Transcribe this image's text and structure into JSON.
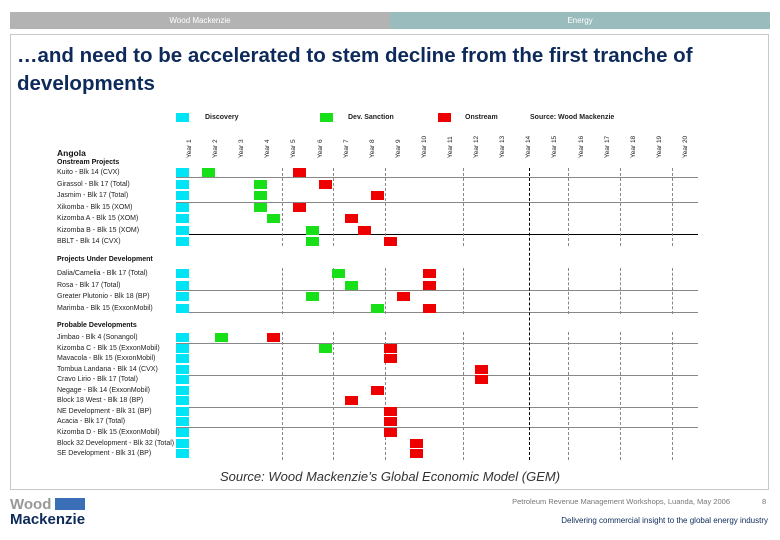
{
  "header": {
    "left": "Wood Mackenzie",
    "right": "Energy"
  },
  "title": "…and need to be accelerated to stem decline from the first tranche of developments",
  "chart_data": {
    "type": "table",
    "legend": [
      {
        "label": "Discovery",
        "color": "#00e5f5"
      },
      {
        "label": "Dev. Sanction",
        "color": "#18e018"
      },
      {
        "label": "Onstream",
        "color": "#ee0000"
      }
    ],
    "legend_note": "Source: Wood Mackenzie",
    "columns": [
      "Year 1",
      "Year 2",
      "Year 3",
      "Year 4",
      "Year 5",
      "Year 6",
      "Year 7",
      "Year 8",
      "Year 9",
      "Year 10",
      "Year 11",
      "Year 12",
      "Year 13",
      "Year 14",
      "Year 15",
      "Year 16",
      "Year 17",
      "Year 18",
      "Year 19",
      "Year 20"
    ],
    "country": "Angola",
    "sections": [
      {
        "title": "Onstream Projects",
        "rows": [
          {
            "label": "Kuito - Blk 14 (CVX)",
            "discovery": 1,
            "sanction": 2,
            "onstream": 5.5
          },
          {
            "label": "Girassol - Blk 17 (Total)",
            "discovery": 1,
            "sanction": 4,
            "onstream": 6.5
          },
          {
            "label": "Jasmim - Blk 17 (Total)",
            "discovery": 1,
            "sanction": 4,
            "onstream": 8.5
          },
          {
            "label": "Xikomba - Blk 15 (XOM)",
            "discovery": 1,
            "sanction": 4,
            "onstream": 5.5
          },
          {
            "label": "Kizomba A - Blk 15 (XOM)",
            "discovery": 1,
            "sanction": 4.5,
            "onstream": 7.5
          },
          {
            "label": "Kizomba B - Blk 15 (XOM)",
            "discovery": 1,
            "sanction": 6,
            "onstream": 8
          },
          {
            "label": "BBLT - Blk 14 (CVX)",
            "discovery": 1,
            "sanction": 6,
            "onstream": 9
          }
        ]
      },
      {
        "title": "Projects Under Development",
        "rows": [
          {
            "label": "Dalia/Camelia - Blk 17 (Total)",
            "discovery": 1,
            "sanction": 7,
            "onstream": 10.5
          },
          {
            "label": "Rosa - Blk 17 (Total)",
            "discovery": 1,
            "sanction": 7.5,
            "onstream": 10.5
          },
          {
            "label": "Greater Plutonio - Blk 18 (BP)",
            "discovery": 1,
            "sanction": 6,
            "onstream": 9.5
          },
          {
            "label": "Marimba - Blk 15 (ExxonMobil)",
            "discovery": 1,
            "sanction": 8.5,
            "onstream": 10.5
          }
        ]
      },
      {
        "title": "Probable Developments",
        "rows": [
          {
            "label": "Jimbao - Blk 4 (Sonangol)",
            "discovery": 1,
            "sanction": 2.5,
            "onstream": 4.5
          },
          {
            "label": "Kizomba C - Blk 15 (ExxonMobil)",
            "discovery": 1,
            "sanction": 6.5,
            "onstream": 9
          },
          {
            "label": "Mavacola - Blk 15 (ExxonMobil)",
            "discovery": 1,
            "sanction": null,
            "onstream": 9
          },
          {
            "label": "Tombua Landana - Blk 14 (CVX)",
            "discovery": 1,
            "sanction": null,
            "onstream": 12.5
          },
          {
            "label": "Cravo Lirio - Blk 17 (Total)",
            "discovery": 1,
            "sanction": null,
            "onstream": 12.5
          },
          {
            "label": "Negage - Blk 14 (ExxonMobil)",
            "discovery": 1,
            "sanction": null,
            "onstream": 8.5
          },
          {
            "label": "Block 18 West - Blk 18 (BP)",
            "discovery": 1,
            "sanction": null,
            "onstream": 7.5
          },
          {
            "label": "NE Development - Blk 31 (BP)",
            "discovery": 1,
            "sanction": null,
            "onstream": 9
          },
          {
            "label": "Acacia - Blk 17 (Total)",
            "discovery": 1,
            "sanction": null,
            "onstream": 9
          },
          {
            "label": "Kizomba D - Blk 15 (ExxonMobil)",
            "discovery": 1,
            "sanction": null,
            "onstream": 9
          },
          {
            "label": "Block 32 Development - Blk 32 (Total)",
            "discovery": 1,
            "sanction": null,
            "onstream": 10
          },
          {
            "label": "SE Development - Blk 31 (BP)",
            "discovery": 1,
            "sanction": null,
            "onstream": 10
          }
        ]
      }
    ]
  },
  "source": "Source: Wood Mackenzie’s Global Economic Model (GEM)",
  "footer": {
    "logo_top": "Wood",
    "logo_bottom": "Mackenzie",
    "event": "Petroleum Revenue Management Workshops, Luanda, May 2006",
    "page": "8",
    "tagline": "Delivering commercial insight to the global energy industry"
  }
}
